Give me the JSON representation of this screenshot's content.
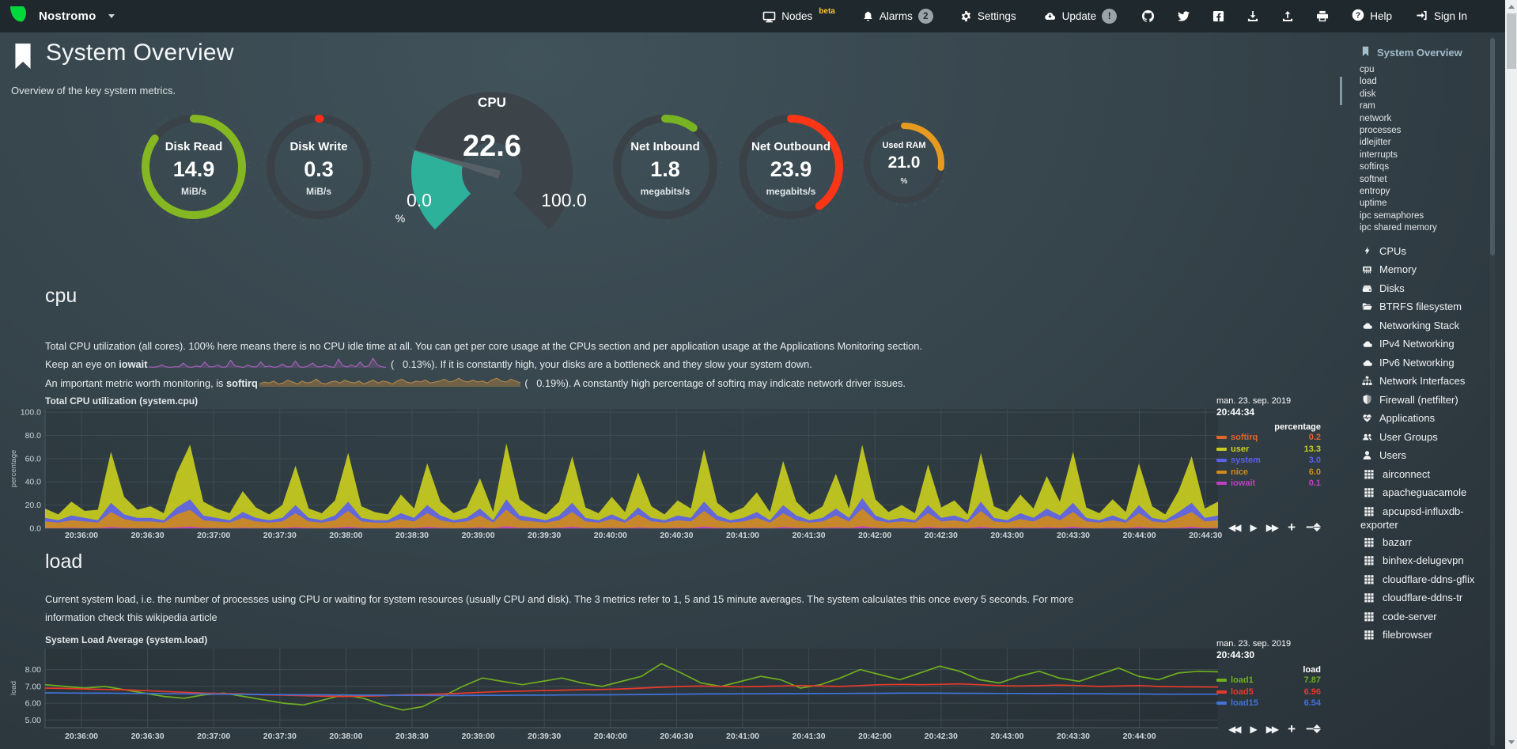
{
  "navbar": {
    "brand": "Nostromo",
    "menu": [
      {
        "label": "Nodes",
        "sup": "beta",
        "icon": "monitor"
      },
      {
        "label": "Alarms",
        "badge": "2",
        "icon": "bell"
      },
      {
        "label": "Settings",
        "icon": "gear"
      },
      {
        "label": "Update",
        "badge": "!",
        "icon": "cloud-update"
      }
    ],
    "icon_links": [
      "github",
      "twitter",
      "facebook",
      "download",
      "upload",
      "print"
    ],
    "help": "Help",
    "sign_in": "Sign In"
  },
  "header": {
    "title": "System Overview",
    "subtitle": "Overview of the key system metrics."
  },
  "gauges": {
    "disk_read": {
      "label": "Disk Read",
      "value": "14.9",
      "unit": "MiB/s",
      "color": "#84b722",
      "fraction": 0.85
    },
    "disk_write": {
      "label": "Disk Write",
      "value": "0.3",
      "unit": "MiB/s",
      "color": "#ff2d18",
      "fraction": 0.004
    },
    "cpu": {
      "label": "CPU",
      "value": "22.6",
      "unit": "%",
      "min": "0.0",
      "max": "100.0",
      "color": "#2eb19b",
      "fraction": 0.226
    },
    "net_inbound": {
      "label": "Net Inbound",
      "value": "1.8",
      "unit": "megabits/s",
      "color": "#77b322",
      "fraction": 0.1
    },
    "net_outbound": {
      "label": "Net Outbound",
      "value": "23.9",
      "unit": "megabits/s",
      "color": "#fb3617",
      "fraction": 0.4
    },
    "used_ram": {
      "label": "Used RAM",
      "value": "21.0",
      "unit": "%",
      "color": "#e69b20",
      "fraction": 0.27
    }
  },
  "cpu_section": {
    "heading": "cpu",
    "desc1": "Total CPU utilization (all cores). 100% here means there is no CPU idle time at all. You can get per core usage at the CPUs section and per application usage at the Applications Monitoring section.",
    "desc2_pre": "Keep an eye on ",
    "desc2_bold": "iowait",
    "desc2_post": " (   0.13%). If it is constantly high, your disks are a bottleneck and they slow your system down.",
    "desc3_pre": "An important metric worth monitoring, is ",
    "desc3_bold": "softirq",
    "desc3_post": " (   0.19%). A constantly high percentage of softirq may indicate network driver issues.",
    "iowait_spark": [
      0.1,
      0.05,
      0.1,
      0.3,
      0.1,
      0.05,
      0.1,
      0.1,
      0.5,
      0.1,
      0.05,
      0.2,
      0.1,
      0.6,
      0.1,
      0.1,
      0.3,
      0.05,
      0.1,
      0.8,
      0.2,
      0.1,
      0.05,
      0.3,
      0.1,
      0.1,
      0.6,
      0.1,
      0.2,
      0.05,
      0.1,
      0.4,
      0.1,
      0.1,
      0.7,
      0.1,
      0.05,
      0.2,
      0.5,
      0.1,
      0.1,
      0.3,
      0.1,
      0.05,
      0.9,
      0.2,
      0.1,
      0.3,
      0.1,
      0.6,
      0.1,
      0.2,
      1.0,
      0.3,
      0.1,
      0.05
    ],
    "softirq_spark": [
      0.3,
      0.5,
      0.4,
      0.6,
      0.3,
      0.4,
      0.7,
      0.5,
      0.3,
      0.6,
      0.4,
      0.5,
      0.8,
      0.4,
      0.3,
      0.5,
      0.6,
      0.4,
      0.7,
      0.5,
      0.4,
      0.6,
      0.3,
      0.5,
      0.7,
      0.4,
      0.6,
      0.5,
      0.3,
      0.6,
      0.8,
      0.5,
      0.4,
      0.6,
      0.5,
      0.7,
      0.4,
      0.5,
      0.6,
      0.8,
      0.5,
      0.6,
      0.9,
      0.6,
      0.5,
      0.7,
      0.5,
      0.6,
      0.4,
      0.7,
      0.9,
      0.6,
      0.5,
      0.8,
      0.6,
      0.4
    ]
  },
  "load_section": {
    "heading": "load",
    "desc_pre": "Current system load, i.e. the number of processes using CPU or waiting for system resources (usually CPU and disk). The 3 metrics refer to 1, 5 and 15 minute averages. The system calculates this once every 5 seconds. For more information check this ",
    "link": "wikipedia article"
  },
  "chart_data": [
    {
      "id": "cpu",
      "type": "area",
      "title": "Total CPU utilization (system.cpu)",
      "date": "man. 23. sep. 2019",
      "time": "20:44:34",
      "unit_header": "percentage",
      "ylabel": "percentage",
      "yticks": [
        "100.0",
        "80.0",
        "60.0",
        "40.0",
        "20.0",
        "0.0"
      ],
      "ytick_values": [
        100,
        80,
        60,
        40,
        20,
        0
      ],
      "ylim": [
        0,
        102.8
      ],
      "xlabels": [
        "20:36:00",
        "20:36:30",
        "20:37:00",
        "20:37:30",
        "20:38:00",
        "20:38:30",
        "20:39:00",
        "20:39:30",
        "20:40:00",
        "20:40:30",
        "20:41:00",
        "20:41:30",
        "20:42:00",
        "20:42:30",
        "20:43:00",
        "20:43:30",
        "20:44:00",
        "20:44:30"
      ],
      "legend": [
        {
          "name": "softirq",
          "value": "0.2",
          "color": "#e0662a"
        },
        {
          "name": "user",
          "value": "13.3",
          "color": "#c9cd20"
        },
        {
          "name": "system",
          "value": "3.0",
          "color": "#5c5fe8"
        },
        {
          "name": "nice",
          "value": "6.0",
          "color": "#cf8a1c"
        },
        {
          "name": "iowait",
          "value": "0.1",
          "color": "#c23fc2"
        }
      ],
      "series": [
        {
          "name": "nice",
          "color": "#cf8a1c",
          "values": [
            6,
            5,
            7,
            6,
            5,
            14,
            8,
            6,
            6,
            5,
            12,
            16,
            7,
            6,
            5,
            9,
            6,
            5,
            6,
            13,
            6,
            5,
            7,
            15,
            6,
            5,
            5,
            8,
            6,
            13,
            7,
            5,
            6,
            11,
            5,
            16,
            7,
            6,
            5,
            7,
            14,
            6,
            5,
            8,
            5,
            12,
            6,
            5,
            7,
            6,
            15,
            7,
            5,
            6,
            9,
            5,
            13,
            7,
            5,
            6,
            11,
            6,
            17,
            7,
            5,
            6,
            5,
            13,
            6,
            7,
            5,
            15,
            6,
            5,
            8,
            6,
            11,
            7,
            14,
            6,
            5,
            7,
            5,
            13,
            6,
            5,
            9,
            14,
            6,
            7
          ]
        },
        {
          "name": "system",
          "color": "#5c5fe8",
          "values": [
            3,
            2,
            4,
            3,
            2,
            8,
            4,
            3,
            3,
            2,
            6,
            9,
            4,
            3,
            2,
            5,
            3,
            2,
            3,
            7,
            3,
            2,
            4,
            8,
            3,
            2,
            2,
            5,
            3,
            7,
            4,
            2,
            3,
            6,
            2,
            9,
            4,
            3,
            2,
            4,
            8,
            3,
            2,
            4,
            2,
            6,
            3,
            2,
            4,
            3,
            8,
            4,
            2,
            3,
            5,
            2,
            7,
            4,
            2,
            3,
            6,
            3,
            9,
            4,
            2,
            3,
            2,
            7,
            3,
            4,
            2,
            8,
            3,
            2,
            5,
            3,
            6,
            4,
            8,
            3,
            2,
            4,
            2,
            7,
            3,
            2,
            5,
            8,
            3,
            4
          ]
        },
        {
          "name": "user",
          "color": "#c9cd20",
          "values": [
            8,
            5,
            12,
            6,
            9,
            44,
            15,
            7,
            10,
            6,
            30,
            47,
            12,
            8,
            6,
            18,
            9,
            5,
            11,
            34,
            8,
            6,
            13,
            42,
            10,
            7,
            5,
            16,
            8,
            36,
            12,
            6,
            9,
            26,
            7,
            48,
            14,
            8,
            5,
            12,
            40,
            9,
            6,
            15,
            7,
            30,
            10,
            5,
            13,
            8,
            45,
            11,
            6,
            9,
            17,
            7,
            38,
            12,
            5,
            10,
            30,
            8,
            46,
            14,
            7,
            11,
            6,
            35,
            9,
            13,
            5,
            42,
            10,
            7,
            16,
            8,
            28,
            12,
            44,
            9,
            6,
            14,
            7,
            36,
            10,
            5,
            18,
            40,
            8,
            12
          ]
        },
        {
          "name": "iowait",
          "color": "#c23fc2",
          "values": [
            0.2,
            0.1,
            0.3,
            0.1,
            0.2,
            0.8,
            0.3,
            0.1,
            0.2,
            0.1,
            0.5,
            1,
            0.3,
            0.2,
            0.1,
            0.4,
            0.2,
            0.1,
            0.2,
            0.7,
            0.2,
            0.1,
            0.3,
            0.9,
            0.2,
            0.1,
            0.1,
            0.4,
            0.2,
            0.8,
            0.3,
            0.1,
            0.2,
            0.6,
            0.1,
            1.1,
            0.3,
            0.2,
            0.1,
            0.3,
            0.9,
            0.2,
            0.1,
            0.3,
            0.1,
            0.6,
            0.2,
            0.1,
            0.3,
            0.2,
            1,
            0.3,
            0.1,
            0.2,
            0.4,
            0.1,
            0.8,
            0.3,
            0.1,
            0.2,
            0.6,
            0.2,
            1.2,
            0.3,
            0.1,
            0.2,
            0.1,
            0.8,
            0.2,
            0.3,
            0.1,
            0.9,
            0.2,
            0.1,
            0.4,
            0.2,
            0.6,
            0.3,
            0.9,
            0.2,
            0.1,
            0.3,
            0.1,
            0.8,
            0.2,
            0.1,
            0.4,
            0.9,
            0.2,
            0.3
          ]
        },
        {
          "name": "softirq",
          "color": "#e0662a",
          "constant": 0.2,
          "length": 90
        }
      ]
    },
    {
      "id": "load",
      "type": "line",
      "title": "System Load Average (system.load)",
      "date": "man. 23. sep. 2019",
      "time": "20:44:30",
      "unit_header": "load",
      "ylabel": "load",
      "yticks": [
        "8.00",
        "7.00",
        "6.00",
        "5.00"
      ],
      "ytick_values": [
        8,
        7,
        6,
        5
      ],
      "ylim": [
        4.55,
        9.25
      ],
      "xlabels": [
        "20:36:00",
        "20:36:30",
        "20:37:00",
        "20:37:30",
        "20:38:00",
        "20:38:30",
        "20:39:00",
        "20:39:30",
        "20:40:00",
        "20:40:30",
        "20:41:00",
        "20:41:30",
        "20:42:00",
        "20:42:30",
        "20:43:00",
        "20:43:30",
        "20:44:00"
      ],
      "legend": [
        {
          "name": "load1",
          "value": "7.87",
          "color": "#6fae1e"
        },
        {
          "name": "load5",
          "value": "6.96",
          "color": "#e8392a"
        },
        {
          "name": "load15",
          "value": "6.54",
          "color": "#4272d8"
        }
      ],
      "series": [
        {
          "name": "load1",
          "color": "#6fae1e",
          "values": [
            7.1,
            7.0,
            6.9,
            7.0,
            6.8,
            6.6,
            6.4,
            6.3,
            6.5,
            6.6,
            6.4,
            6.2,
            6.0,
            5.9,
            6.2,
            6.5,
            6.3,
            5.9,
            5.6,
            5.8,
            6.4,
            7.0,
            7.5,
            7.3,
            7.1,
            7.3,
            7.5,
            7.2,
            7.0,
            7.3,
            7.6,
            8.35,
            7.8,
            7.2,
            7.0,
            7.3,
            7.6,
            7.4,
            6.9,
            7.1,
            7.5,
            8.0,
            7.7,
            7.4,
            7.8,
            8.2,
            7.9,
            7.4,
            7.2,
            7.6,
            7.9,
            7.5,
            7.3,
            7.7,
            8.1,
            7.6,
            7.4,
            7.8,
            7.9,
            7.87
          ]
        },
        {
          "name": "load5",
          "color": "#e8392a",
          "values": [
            6.9,
            6.88,
            6.85,
            6.82,
            6.8,
            6.75,
            6.7,
            6.65,
            6.6,
            6.58,
            6.55,
            6.5,
            6.48,
            6.45,
            6.42,
            6.4,
            6.42,
            6.45,
            6.5,
            6.52,
            6.55,
            6.6,
            6.65,
            6.7,
            6.72,
            6.75,
            6.78,
            6.8,
            6.82,
            6.85,
            6.9,
            6.95,
            7.0,
            7.02,
            7.0,
            6.98,
            7.0,
            7.02,
            7.05,
            7.02,
            7.0,
            7.05,
            7.1,
            7.12,
            7.1,
            7.12,
            7.15,
            7.1,
            7.05,
            7.02,
            7.05,
            7.08,
            7.05,
            7.0,
            7.02,
            7.05,
            7.0,
            6.98,
            6.97,
            6.96
          ]
        },
        {
          "name": "load15",
          "color": "#4272d8",
          "values": [
            6.62,
            6.61,
            6.6,
            6.6,
            6.59,
            6.58,
            6.57,
            6.56,
            6.55,
            6.54,
            6.53,
            6.52,
            6.51,
            6.5,
            6.5,
            6.49,
            6.48,
            6.48,
            6.47,
            6.47,
            6.46,
            6.46,
            6.47,
            6.47,
            6.48,
            6.48,
            6.49,
            6.5,
            6.5,
            6.51,
            6.52,
            6.53,
            6.54,
            6.55,
            6.55,
            6.56,
            6.56,
            6.57,
            6.57,
            6.58,
            6.58,
            6.59,
            6.59,
            6.6,
            6.6,
            6.6,
            6.59,
            6.59,
            6.58,
            6.58,
            6.57,
            6.57,
            6.56,
            6.56,
            6.55,
            6.55,
            6.54,
            6.54,
            6.54,
            6.54
          ]
        }
      ]
    }
  ],
  "toolbar_icons": [
    "backward",
    "play",
    "forward",
    "zoom-in",
    "zoom-out",
    "resize"
  ],
  "sidebar": {
    "active": "System Overview",
    "subitems": [
      "cpu",
      "load",
      "disk",
      "ram",
      "network",
      "processes",
      "idlejitter",
      "interrupts",
      "softirqs",
      "softnet",
      "entropy",
      "uptime",
      "ipc semaphores",
      "ipc shared memory"
    ],
    "sections": [
      {
        "label": "CPUs",
        "icon": "bolt"
      },
      {
        "label": "Memory",
        "icon": "memory"
      },
      {
        "label": "Disks",
        "icon": "hdd"
      },
      {
        "label": "BTRFS filesystem",
        "icon": "folder"
      },
      {
        "label": "Networking Stack",
        "icon": "cloud"
      },
      {
        "label": "IPv4 Networking",
        "icon": "cloud"
      },
      {
        "label": "IPv6 Networking",
        "icon": "cloud"
      },
      {
        "label": "Network Interfaces",
        "icon": "sitemap"
      },
      {
        "label": "Firewall (netfilter)",
        "icon": "shield"
      },
      {
        "label": "Applications",
        "icon": "heartbeat"
      },
      {
        "label": "User Groups",
        "icon": "users"
      },
      {
        "label": "Users",
        "icon": "user"
      }
    ],
    "apps": [
      "airconnect",
      "apacheguacamole",
      "apcupsd-influxdb-exporter",
      "bazarr",
      "binhex-delugevpn",
      "cloudflare-ddns-gflix",
      "cloudflare-ddns-tr",
      "code-server",
      "filebrowser"
    ]
  }
}
